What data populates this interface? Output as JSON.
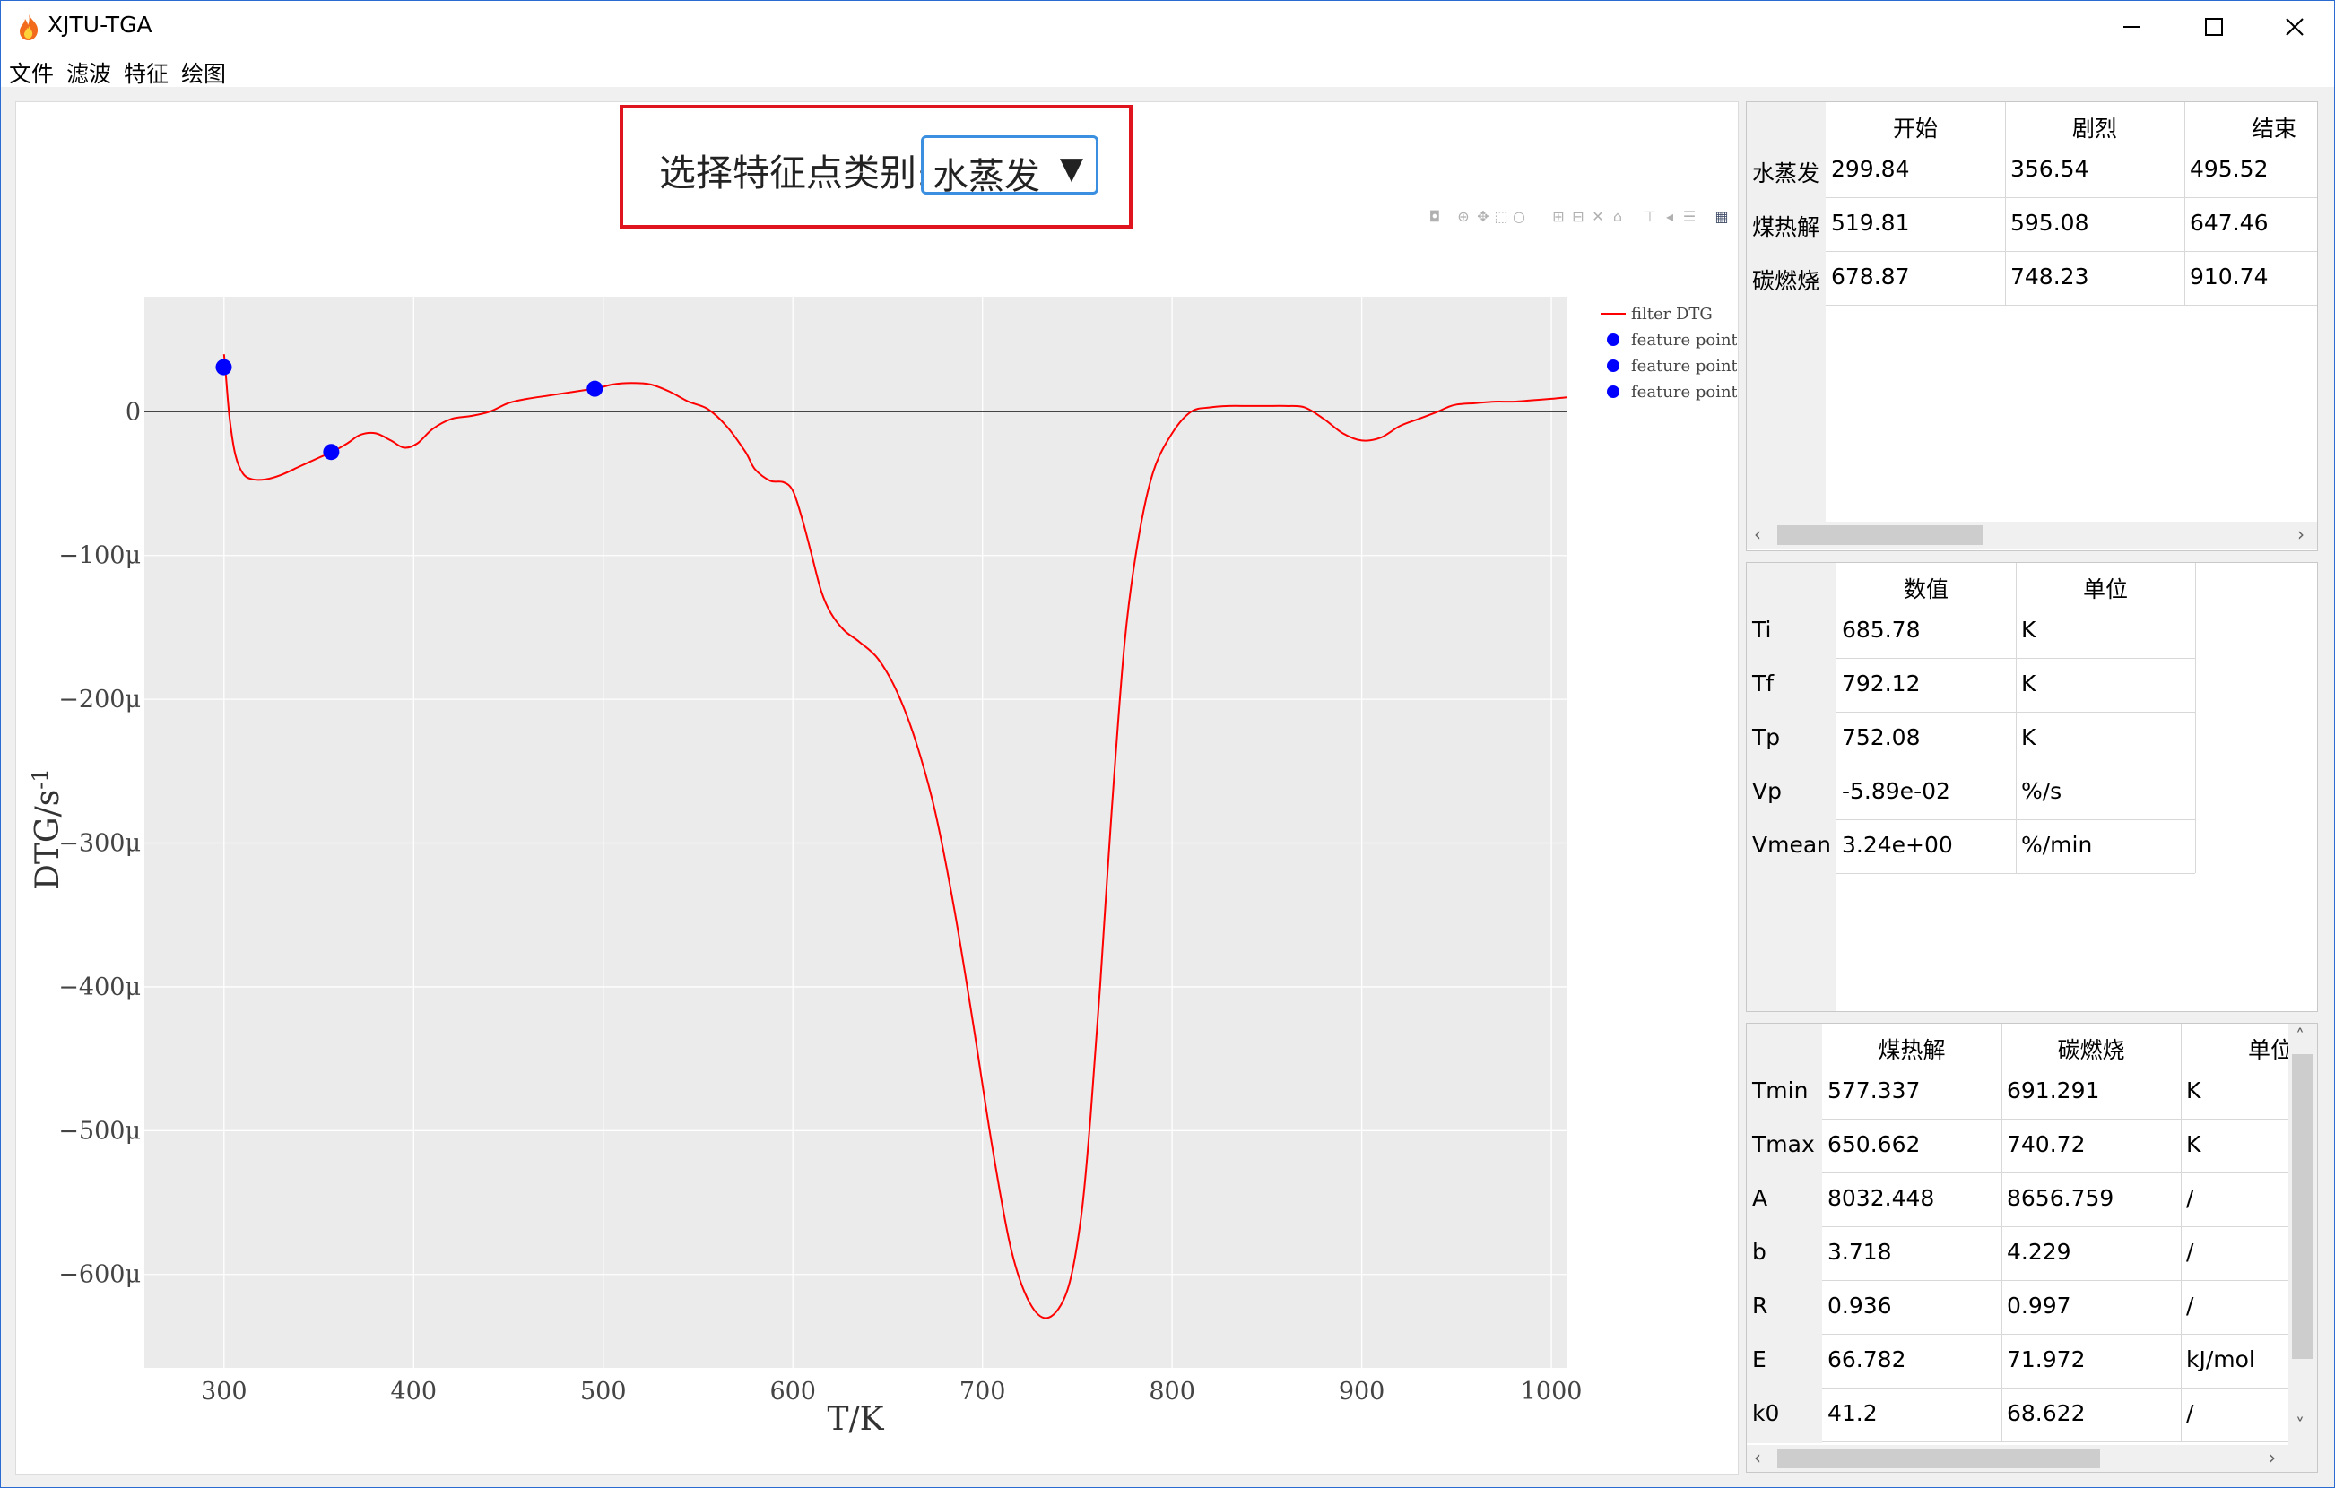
{
  "window": {
    "title": "XJTU-TGA"
  },
  "menu": [
    "文件",
    "滤波",
    "特征",
    "绘图"
  ],
  "selector": {
    "label": "选择特征点类别:",
    "value": "水蒸发"
  },
  "chart_data": {
    "type": "line",
    "title": "",
    "xlabel": "T/K",
    "ylabel": "DTG/s-1",
    "xlim": [
      258,
      1008
    ],
    "ylim": [
      -0.000665,
      8e-05
    ],
    "x_ticks": [
      "300",
      "400",
      "500",
      "600",
      "700",
      "800",
      "900",
      "1000"
    ],
    "y_ticks": [
      "0",
      "−100μ",
      "−200μ",
      "−300μ",
      "−400μ",
      "−500μ",
      "−600μ"
    ],
    "legend_position": "top-right",
    "grid": true,
    "series": [
      {
        "name": "filter DTG",
        "color": "#ff0000",
        "x": [
          300,
          301,
          303,
          306,
          310,
          315,
          322,
          330,
          340,
          350,
          357,
          365,
          372,
          380,
          388,
          395,
          402,
          410,
          420,
          430,
          440,
          450,
          460,
          470,
          480,
          490,
          496,
          505,
          515,
          525,
          535,
          545,
          555,
          565,
          575,
          580,
          588,
          595,
          600,
          605,
          610,
          615,
          620,
          627,
          635,
          645,
          655,
          665,
          675,
          685,
          695,
          705,
          715,
          725,
          735,
          745,
          752,
          757,
          762,
          768,
          775,
          782,
          790,
          800,
          810,
          820,
          830,
          840,
          850,
          860,
          870,
          880,
          890,
          900,
          910,
          920,
          930,
          940,
          945,
          950,
          960,
          970,
          980,
          990,
          1000,
          1008
        ],
        "y": [
          4e-05,
          2.5e-05,
          -5e-06,
          -3e-05,
          -4.3e-05,
          -4.7e-05,
          -4.7e-05,
          -4.4e-05,
          -3.8e-05,
          -3.2e-05,
          -2.8e-05,
          -2.2e-05,
          -1.6e-05,
          -1.5e-05,
          -2e-05,
          -2.5e-05,
          -2.2e-05,
          -1.2e-05,
          -5e-06,
          -3e-06,
          0.0,
          6e-06,
          9e-06,
          1.1e-05,
          1.3e-05,
          1.5e-05,
          1.6e-05,
          1.9e-05,
          2e-05,
          1.9e-05,
          1.4e-05,
          7e-06,
          2e-06,
          -1e-05,
          -2.8e-05,
          -4e-05,
          -4.8e-05,
          -4.9e-05,
          -5.5e-05,
          -7.5e-05,
          -0.0001,
          -0.000125,
          -0.00014,
          -0.000152,
          -0.00016,
          -0.000172,
          -0.000195,
          -0.00023,
          -0.000278,
          -0.000345,
          -0.000425,
          -0.00051,
          -0.000582,
          -0.00062,
          -0.00063,
          -0.00061,
          -0.00056,
          -0.00049,
          -0.0004,
          -0.00028,
          -0.00016,
          -9e-05,
          -4.2e-05,
          -1.5e-05,
          0.0,
          3e-06,
          4e-06,
          4e-06,
          4e-06,
          4e-06,
          3e-06,
          -5e-06,
          -1.5e-05,
          -2e-05,
          -1.8e-05,
          -1e-05,
          -5e-06,
          0.0,
          3e-06,
          5e-06,
          6e-06,
          7e-06,
          7e-06,
          8e-06,
          9e-06,
          1e-05
        ]
      },
      {
        "name": "feature point",
        "color": "#0000ff",
        "x": [
          299.84
        ],
        "y": [
          3.1e-05
        ]
      },
      {
        "name": "feature point",
        "color": "#0000ff",
        "x": [
          356.54
        ],
        "y": [
          -2.8e-05
        ]
      },
      {
        "name": "feature point",
        "color": "#0000ff",
        "x": [
          495.52
        ],
        "y": [
          1.6e-05
        ]
      }
    ]
  },
  "table1": {
    "headers": [
      "开始",
      "剧烈",
      "结束"
    ],
    "rows": [
      {
        "label": "水蒸发",
        "values": [
          "299.84",
          "356.54",
          "495.52"
        ]
      },
      {
        "label": "煤热解",
        "values": [
          "519.81",
          "595.08",
          "647.46"
        ]
      },
      {
        "label": "碳燃烧",
        "values": [
          "678.87",
          "748.23",
          "910.74"
        ]
      }
    ]
  },
  "table2": {
    "headers": [
      "数值",
      "单位"
    ],
    "rows": [
      {
        "label": "Ti",
        "values": [
          "685.78",
          "K"
        ]
      },
      {
        "label": "Tf",
        "values": [
          "792.12",
          "K"
        ]
      },
      {
        "label": "Tp",
        "values": [
          "752.08",
          "K"
        ]
      },
      {
        "label": "Vp",
        "values": [
          "-5.89e-02",
          "%/s"
        ]
      },
      {
        "label": "Vmean",
        "values": [
          "3.24e+00",
          "%/min"
        ]
      }
    ]
  },
  "table3": {
    "headers": [
      "煤热解",
      "碳燃烧",
      "单位"
    ],
    "rows": [
      {
        "label": "Tmin",
        "values": [
          "577.337",
          "691.291",
          "K"
        ]
      },
      {
        "label": "Tmax",
        "values": [
          "650.662",
          "740.72",
          "K"
        ]
      },
      {
        "label": "A",
        "values": [
          "8032.448",
          "8656.759",
          "/"
        ]
      },
      {
        "label": "b",
        "values": [
          "3.718",
          "4.229",
          "/"
        ]
      },
      {
        "label": "R",
        "values": [
          "0.936",
          "0.997",
          "/"
        ]
      },
      {
        "label": "E",
        "values": [
          "66.782",
          "71.972",
          "kJ/mol"
        ]
      },
      {
        "label": "k0",
        "values": [
          "41.2",
          "68.622",
          "/"
        ]
      }
    ]
  }
}
